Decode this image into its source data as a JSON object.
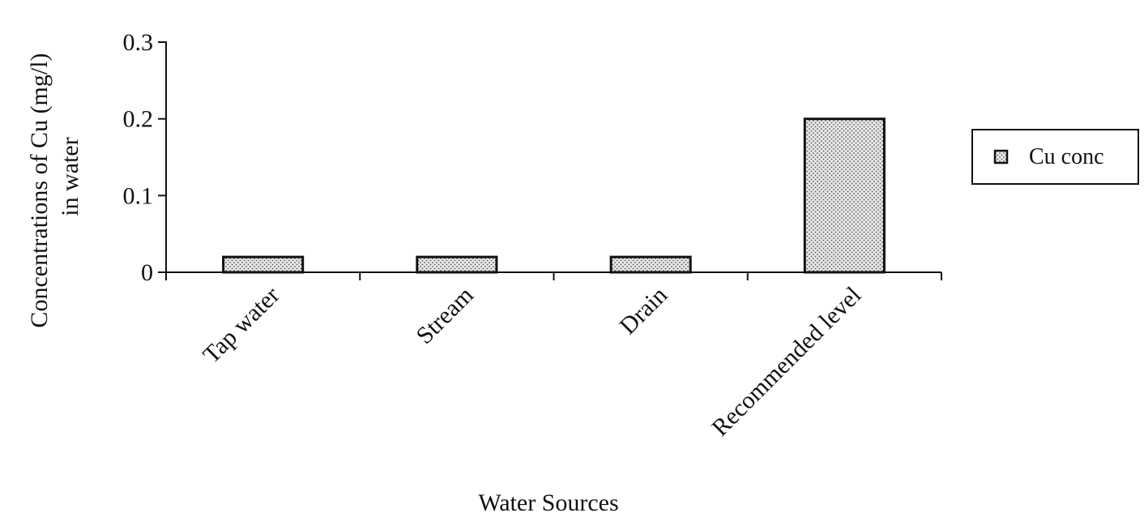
{
  "chart_data": {
    "type": "bar",
    "title": "",
    "xlabel": "Water Sources",
    "ylabel_lines": [
      "Concentrations of Cu (mg/l)",
      "in water"
    ],
    "categories": [
      "Tap water",
      "Stream",
      "Drain",
      "Recommended level"
    ],
    "series": [
      {
        "name": "Cu conc",
        "values": [
          0.02,
          0.02,
          0.02,
          0.2
        ]
      }
    ],
    "ylim": [
      0,
      0.3
    ],
    "yticks": [
      0,
      0.1,
      0.2,
      0.3
    ],
    "ytick_labels": [
      "0",
      "0.1",
      "0.2",
      "0.3"
    ],
    "grid": false,
    "legend_position": "right",
    "bar_fill": "dotted",
    "colors": {
      "bar_fill": "#e6e6e6",
      "bar_dot": "#555555",
      "bar_stroke": "#111111",
      "axis": "#111111"
    }
  }
}
